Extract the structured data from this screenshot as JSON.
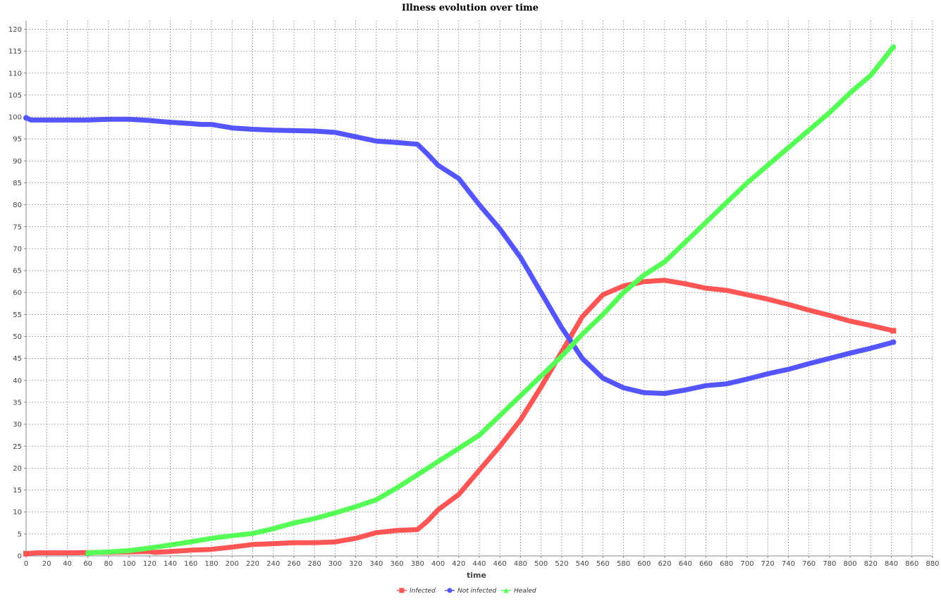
{
  "chart_data": {
    "type": "line",
    "title": "Illness evolution over time",
    "xlabel": "time",
    "ylabel": "",
    "xlim": [
      0,
      880
    ],
    "ylim": [
      0,
      122
    ],
    "x_tick_step": 20,
    "y_tick_step": 5,
    "grid": true,
    "legend_position": "bottom-center",
    "series": [
      {
        "name": "Infected",
        "color": "#ff5555",
        "marker": "square",
        "x": [
          0,
          10,
          40,
          80,
          120,
          125,
          140,
          160,
          180,
          200,
          220,
          240,
          260,
          280,
          300,
          320,
          340,
          360,
          380,
          390,
          400,
          420,
          440,
          460,
          480,
          500,
          520,
          540,
          560,
          580,
          600,
          620,
          640,
          660,
          680,
          700,
          720,
          740,
          760,
          780,
          800,
          820,
          842
        ],
        "y": [
          0.5,
          0.7,
          0.7,
          0.8,
          1.0,
          0.8,
          1.0,
          1.3,
          1.5,
          2.0,
          2.6,
          2.8,
          3.0,
          3.0,
          3.2,
          4.0,
          5.3,
          5.8,
          6.0,
          8.0,
          10.5,
          14.0,
          19.5,
          25.0,
          31.0,
          38.5,
          46.5,
          54.5,
          59.5,
          61.5,
          62.5,
          62.8,
          62.0,
          61.0,
          60.5,
          59.5,
          58.5,
          57.3,
          56.0,
          54.8,
          53.5,
          52.5,
          51.3
        ]
      },
      {
        "name": "Not infected",
        "color": "#5555ff",
        "marker": "circle",
        "x": [
          0,
          5,
          20,
          40,
          60,
          80,
          100,
          120,
          130,
          140,
          160,
          170,
          180,
          200,
          220,
          240,
          260,
          280,
          300,
          320,
          340,
          360,
          380,
          390,
          400,
          420,
          440,
          460,
          480,
          500,
          520,
          540,
          560,
          580,
          600,
          620,
          640,
          660,
          680,
          700,
          720,
          740,
          760,
          780,
          800,
          820,
          842
        ],
        "y": [
          99.8,
          99.3,
          99.3,
          99.3,
          99.3,
          99.5,
          99.5,
          99.2,
          99.0,
          98.8,
          98.5,
          98.3,
          98.3,
          97.5,
          97.2,
          97.0,
          96.9,
          96.8,
          96.5,
          95.5,
          94.5,
          94.2,
          93.8,
          91.5,
          89.0,
          86.0,
          80.0,
          74.5,
          68.0,
          60.0,
          52.0,
          45.0,
          40.5,
          38.3,
          37.2,
          37.0,
          37.8,
          38.8,
          39.2,
          40.3,
          41.5,
          42.5,
          43.8,
          45.0,
          46.2,
          47.3,
          48.7
        ]
      },
      {
        "name": "Healed",
        "color": "#55ff55",
        "marker": "triangle",
        "x": [
          60,
          80,
          100,
          120,
          140,
          160,
          180,
          200,
          220,
          240,
          260,
          280,
          300,
          320,
          340,
          360,
          380,
          400,
          420,
          440,
          460,
          480,
          500,
          520,
          540,
          560,
          580,
          600,
          620,
          640,
          660,
          680,
          700,
          720,
          740,
          760,
          780,
          800,
          820,
          842
        ],
        "y": [
          0.7,
          0.9,
          1.2,
          1.8,
          2.5,
          3.2,
          4.0,
          4.6,
          5.1,
          6.2,
          7.5,
          8.5,
          9.8,
          11.2,
          12.8,
          15.5,
          18.5,
          21.5,
          24.5,
          27.5,
          32.0,
          36.5,
          41.0,
          45.5,
          50.5,
          55.0,
          60.0,
          64.0,
          67.0,
          71.5,
          76.0,
          80.5,
          85.0,
          89.0,
          93.0,
          97.0,
          101.0,
          105.5,
          109.5,
          116.0
        ]
      }
    ]
  }
}
